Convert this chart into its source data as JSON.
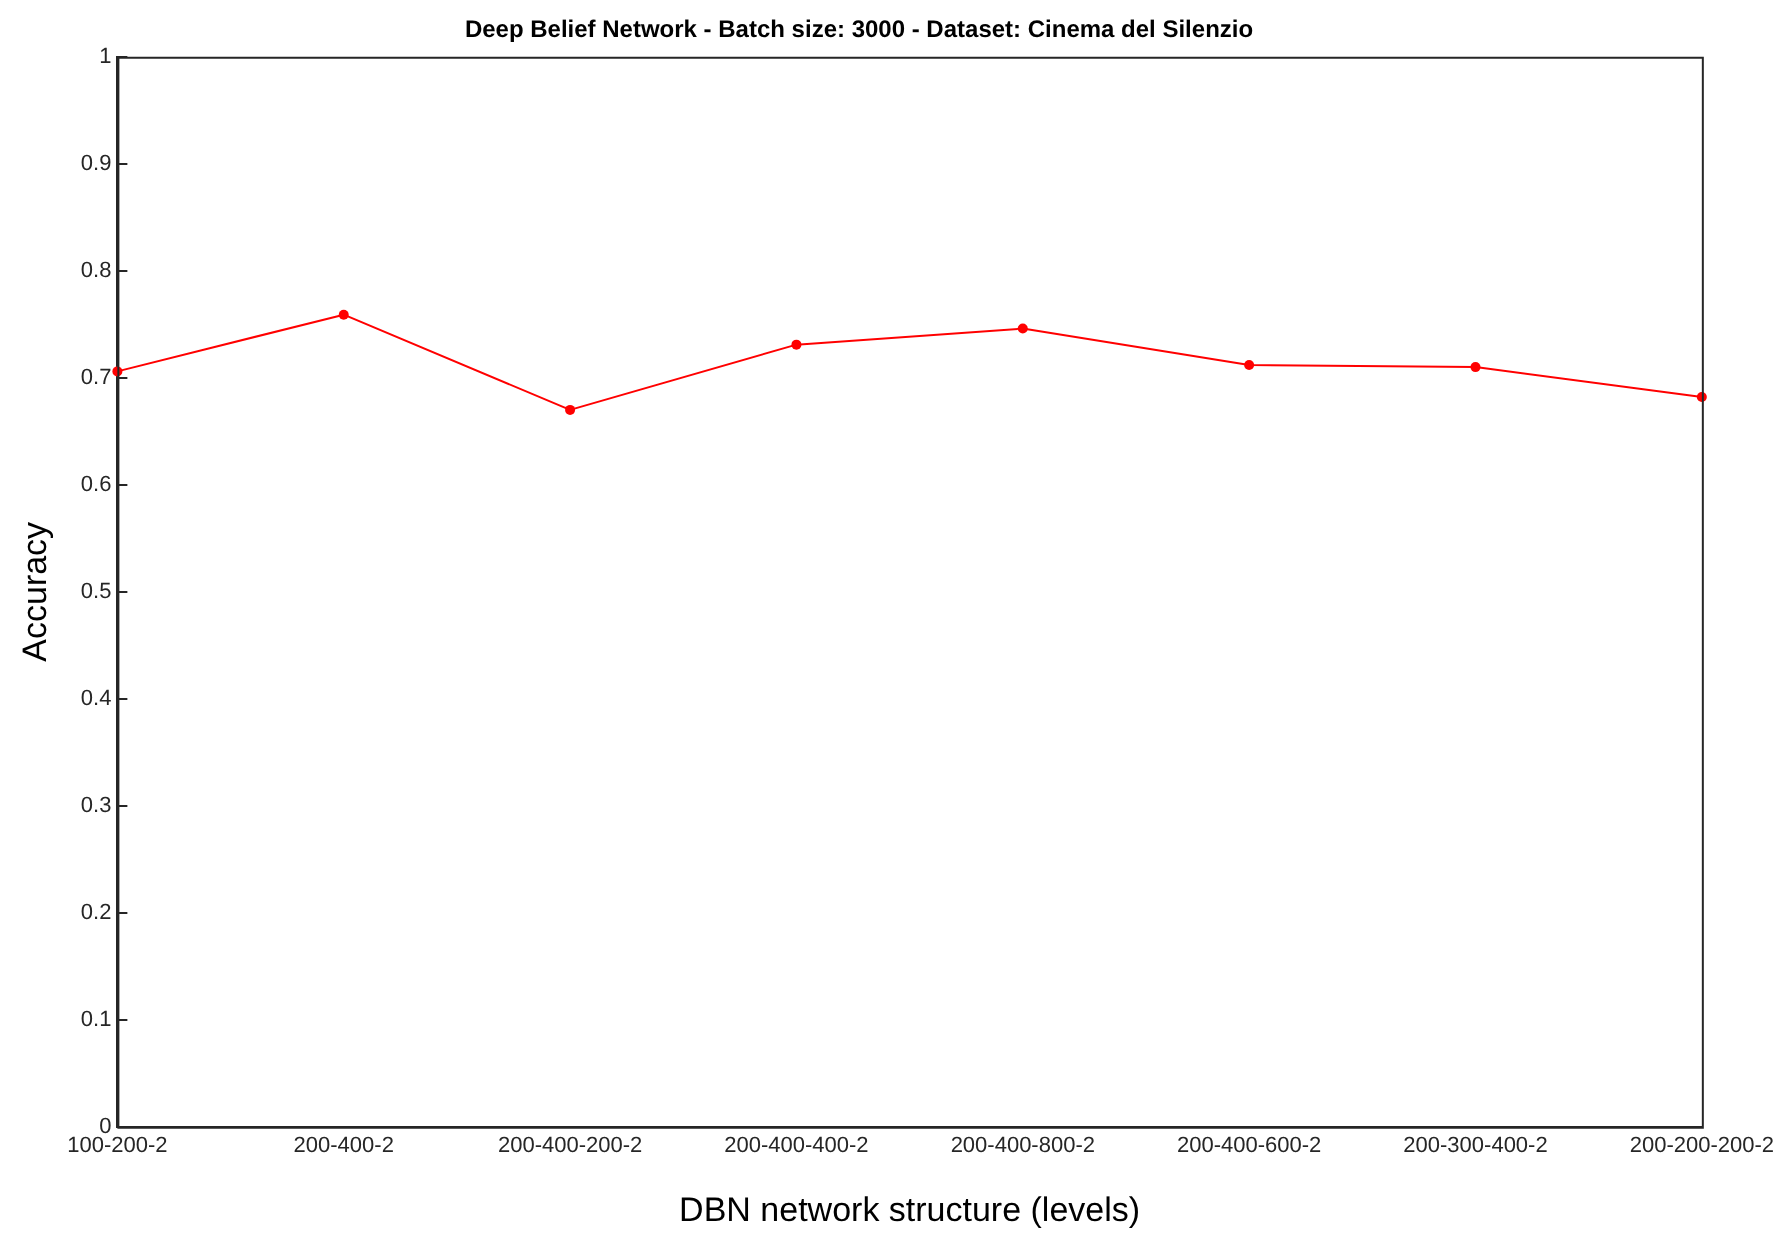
{
  "chart_data": {
    "type": "line",
    "title": "Deep Belief Network - Batch size: 3000 - Dataset: Cinema del Silenzio",
    "xlabel": "DBN network structure (levels)",
    "ylabel": "Accuracy",
    "categories": [
      "100-200-2",
      "200-400-2",
      "200-400-200-2",
      "200-400-400-2",
      "200-400-800-2",
      "200-400-600-2",
      "200-300-400-2",
      "200-200-200-2"
    ],
    "series": [
      {
        "color": "#ff0000",
        "values": [
          0.706,
          0.759,
          0.67,
          0.731,
          0.746,
          0.712,
          0.71,
          0.682
        ]
      }
    ],
    "ylim": [
      0,
      1
    ],
    "yticks": [
      0,
      0.1,
      0.2,
      0.3,
      0.4,
      0.5,
      0.6,
      0.7,
      0.8,
      0.9,
      1
    ],
    "grid": false,
    "legend": false,
    "marker": "circle",
    "line_style": "solid"
  }
}
